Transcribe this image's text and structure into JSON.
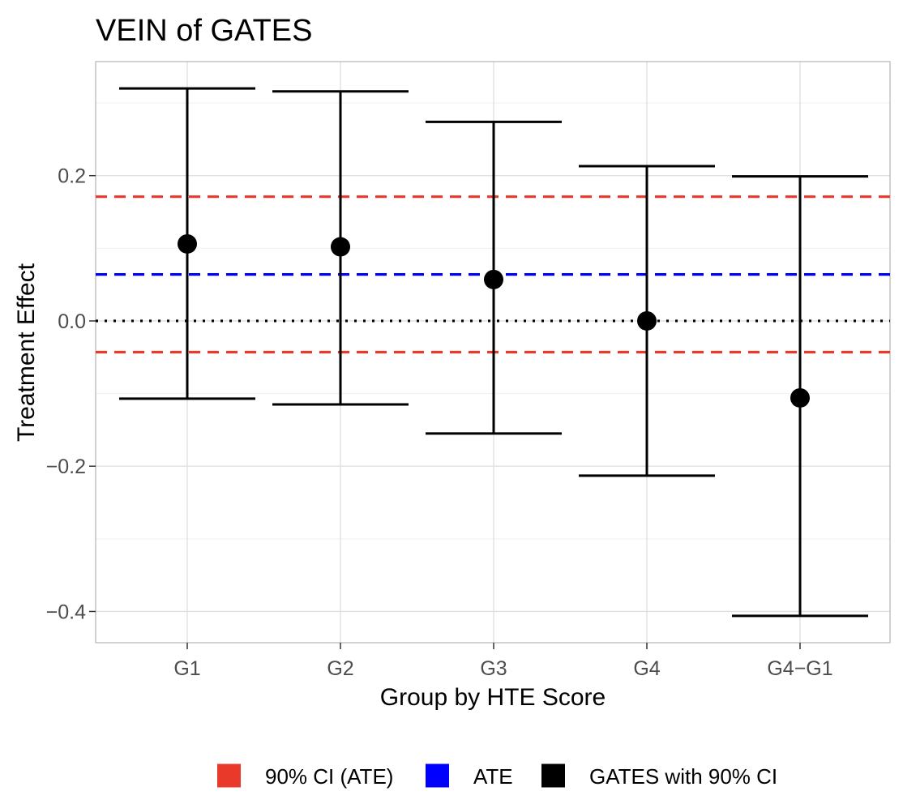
{
  "chart_data": {
    "type": "errorbar",
    "title": "VEIN of GATES",
    "xlabel": "Group by HTE Score",
    "ylabel": "Treatment Effect",
    "categories": [
      "G1",
      "G2",
      "G3",
      "G4",
      "G4−G1"
    ],
    "y_ticks": [
      {
        "value": 0.2,
        "label": "0.2"
      },
      {
        "value": 0.0,
        "label": "0.0"
      },
      {
        "value": -0.2,
        "label": "−0.2"
      },
      {
        "value": -0.4,
        "label": "−0.4"
      }
    ],
    "ylim": [
      -0.443,
      0.357
    ],
    "grid": true,
    "series": [
      {
        "name": "GATES with 90% CI",
        "color": "#000000",
        "estimate": [
          0.106,
          0.102,
          0.057,
          0.0,
          -0.106
        ],
        "ci_lower": [
          -0.107,
          -0.115,
          -0.155,
          -0.213,
          -0.406
        ],
        "ci_upper": [
          0.32,
          0.316,
          0.274,
          0.213,
          0.199
        ]
      }
    ],
    "reference_lines": [
      {
        "name": "ATE",
        "value": 0.064,
        "color": "#0000ff",
        "style": "dashed"
      },
      {
        "name": "90% CI (ATE)",
        "value": 0.171,
        "color": "#e8392b",
        "style": "dashed"
      },
      {
        "name": "90% CI (ATE)",
        "value": -0.043,
        "color": "#e8392b",
        "style": "dashed"
      },
      {
        "name": "",
        "value": 0.0,
        "color": "#000000",
        "style": "dotted"
      }
    ],
    "legend": {
      "position": "bottom",
      "items": [
        {
          "label": "90% CI (ATE)",
          "color": "#e8392b"
        },
        {
          "label": "ATE",
          "color": "#0000ff"
        },
        {
          "label": "GATES with 90% CI",
          "color": "#000000"
        }
      ]
    }
  }
}
